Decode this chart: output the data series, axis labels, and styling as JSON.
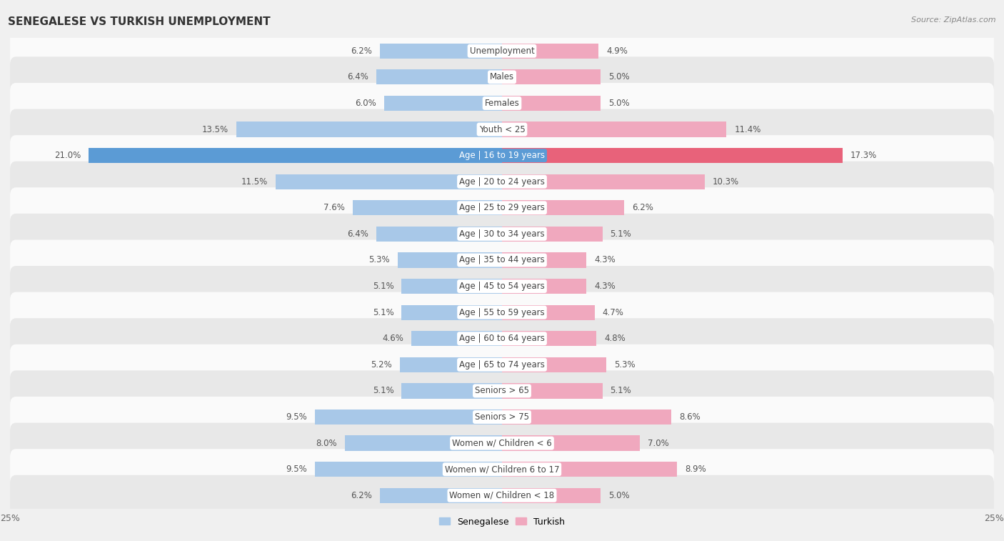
{
  "title": "SENEGALESE VS TURKISH UNEMPLOYMENT",
  "source": "Source: ZipAtlas.com",
  "categories": [
    "Unemployment",
    "Males",
    "Females",
    "Youth < 25",
    "Age | 16 to 19 years",
    "Age | 20 to 24 years",
    "Age | 25 to 29 years",
    "Age | 30 to 34 years",
    "Age | 35 to 44 years",
    "Age | 45 to 54 years",
    "Age | 55 to 59 years",
    "Age | 60 to 64 years",
    "Age | 65 to 74 years",
    "Seniors > 65",
    "Seniors > 75",
    "Women w/ Children < 6",
    "Women w/ Children 6 to 17",
    "Women w/ Children < 18"
  ],
  "senegalese": [
    6.2,
    6.4,
    6.0,
    13.5,
    21.0,
    11.5,
    7.6,
    6.4,
    5.3,
    5.1,
    5.1,
    4.6,
    5.2,
    5.1,
    9.5,
    8.0,
    9.5,
    6.2
  ],
  "turkish": [
    4.9,
    5.0,
    5.0,
    11.4,
    17.3,
    10.3,
    6.2,
    5.1,
    4.3,
    4.3,
    4.7,
    4.8,
    5.3,
    5.1,
    8.6,
    7.0,
    8.9,
    5.0
  ],
  "senegalese_color": "#a8c8e8",
  "turkish_color": "#f0a8be",
  "highlight_senegalese_color": "#5b9bd5",
  "highlight_turkish_color": "#e8627a",
  "axis_max": 25.0,
  "bar_height": 0.58,
  "bg_color": "#f0f0f0",
  "row_light_color": "#fafafa",
  "row_dark_color": "#e8e8e8",
  "label_color": "#555555",
  "center_label_bg": "#ffffff",
  "legend_senegalese": "Senegalese",
  "legend_turkish": "Turkish",
  "highlight_idx": 4
}
